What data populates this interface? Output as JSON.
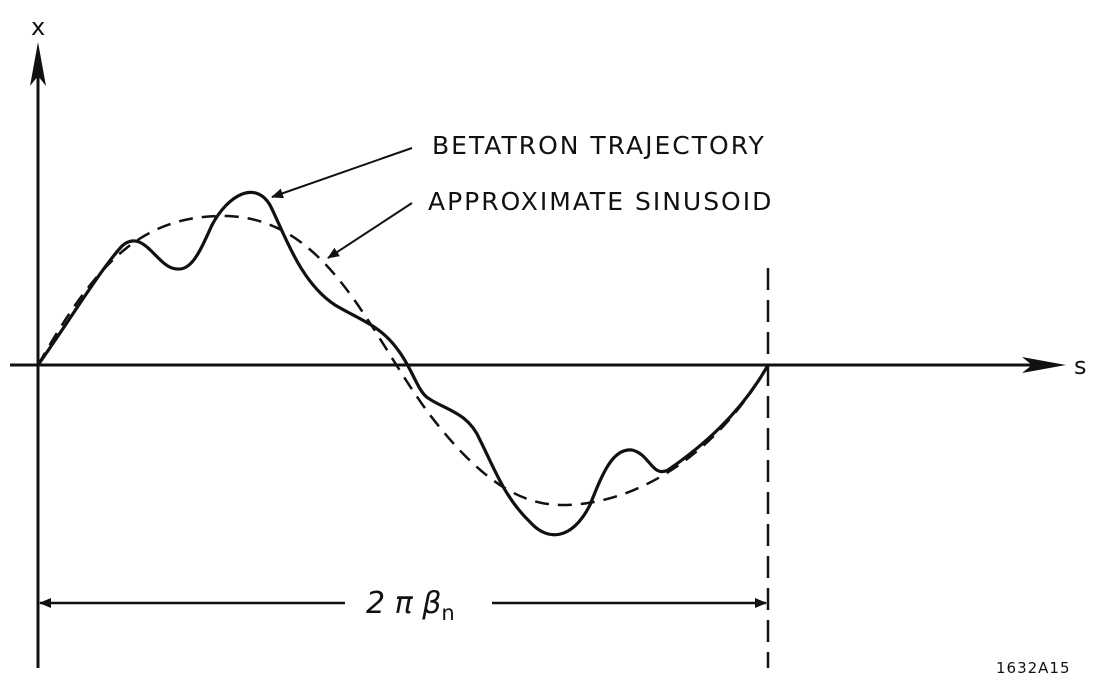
{
  "figure": {
    "y_axis_label": "x",
    "x_axis_label": "s",
    "curves": [
      {
        "name": "BETATRON TRAJECTORY",
        "style": "solid"
      },
      {
        "name": "APPROXIMATE SINUSOID",
        "style": "dashed"
      }
    ],
    "period_label": {
      "main": "2 π β",
      "subscript": "n"
    },
    "figure_code": "1632A15",
    "color": "#111111"
  }
}
